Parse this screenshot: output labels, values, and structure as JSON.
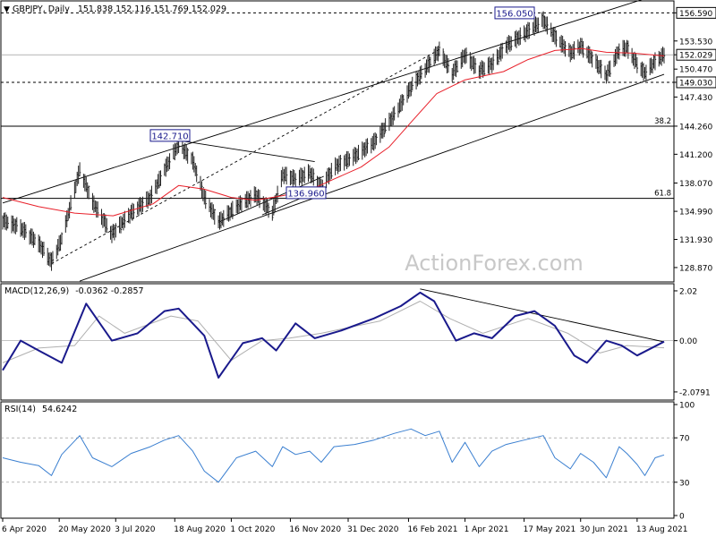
{
  "header": {
    "title": "GBPJPY, Daily",
    "ohlc": "151.838 152.116 151.769 152.029"
  },
  "watermark": "ActionForex.com",
  "colors": {
    "price": "#202020",
    "ma": "#e8202a",
    "macd": "#1a1a8c",
    "signal": "#b0b0b0",
    "rsi": "#3a7fd0",
    "level_box": "#1a1a8c"
  },
  "chart_data": [
    {
      "type": "line",
      "panel": "price",
      "ylim": [
        127.5,
        157.6
      ],
      "yticks": [
        "156.590",
        "153.530",
        "152.029",
        "150.470",
        "149.030",
        "147.430",
        "144.260",
        "141.200",
        "138.070",
        "134.990",
        "131.930",
        "128.870"
      ],
      "ytick_values": [
        156.59,
        153.53,
        152.029,
        150.47,
        149.03,
        147.43,
        144.26,
        141.2,
        138.07,
        134.99,
        131.93,
        128.87
      ],
      "highlighted_levels": [
        "156.590",
        "152.029",
        "149.030"
      ],
      "annotations": [
        {
          "label": "156.050",
          "value": 156.05,
          "date": "2021-06-01"
        },
        {
          "label": "142.710",
          "value": 142.71,
          "date": "2020-08-21"
        },
        {
          "label": "136.960",
          "value": 136.96,
          "date": "2020-12-01"
        }
      ],
      "fib_levels": [
        {
          "label": "38.2",
          "value": 144.26
        },
        {
          "label": "61.8",
          "value": 136.4
        }
      ],
      "series": [
        {
          "kind": "price",
          "points": [
            [
              "2020-04-06",
              134.0
            ],
            [
              "2020-04-20",
              133.2
            ],
            [
              "2020-05-04",
              131.5
            ],
            [
              "2020-05-14",
              129.5
            ],
            [
              "2020-05-22",
              132.0
            ],
            [
              "2020-06-05",
              139.5
            ],
            [
              "2020-06-15",
              136.0
            ],
            [
              "2020-06-30",
              132.5
            ],
            [
              "2020-07-15",
              134.8
            ],
            [
              "2020-07-30",
              136.5
            ],
            [
              "2020-08-10",
              139.5
            ],
            [
              "2020-08-21",
              142.3
            ],
            [
              "2020-09-01",
              140.5
            ],
            [
              "2020-09-10",
              136.5
            ],
            [
              "2020-09-21",
              133.8
            ],
            [
              "2020-10-05",
              135.5
            ],
            [
              "2020-10-20",
              136.8
            ],
            [
              "2020-11-02",
              134.8
            ],
            [
              "2020-11-10",
              139.0
            ],
            [
              "2020-11-20",
              138.5
            ],
            [
              "2020-12-01",
              139.2
            ],
            [
              "2020-12-10",
              137.6
            ],
            [
              "2020-12-20",
              139.8
            ],
            [
              "2021-01-05",
              141.0
            ],
            [
              "2021-01-20",
              142.5
            ],
            [
              "2021-02-05",
              145.5
            ],
            [
              "2021-02-18",
              148.5
            ],
            [
              "2021-03-01",
              150.5
            ],
            [
              "2021-03-12",
              152.5
            ],
            [
              "2021-03-22",
              150.0
            ],
            [
              "2021-04-01",
              152.0
            ],
            [
              "2021-04-12",
              150.3
            ],
            [
              "2021-04-22",
              151.0
            ],
            [
              "2021-05-03",
              153.0
            ],
            [
              "2021-05-17",
              154.3
            ],
            [
              "2021-06-01",
              155.8
            ],
            [
              "2021-06-10",
              154.0
            ],
            [
              "2021-06-22",
              152.2
            ],
            [
              "2021-06-30",
              153.0
            ],
            [
              "2021-07-10",
              151.5
            ],
            [
              "2021-07-20",
              149.8
            ],
            [
              "2021-07-30",
              152.5
            ],
            [
              "2021-08-05",
              152.8
            ],
            [
              "2021-08-13",
              151.0
            ],
            [
              "2021-08-19",
              150.0
            ],
            [
              "2021-08-27",
              151.3
            ],
            [
              "2021-09-03",
              152.03
            ]
          ]
        },
        {
          "kind": "moving-average",
          "points": [
            [
              "2020-04-06",
              136.5
            ],
            [
              "2020-05-04",
              135.5
            ],
            [
              "2020-06-01",
              134.8
            ],
            [
              "2020-07-01",
              134.5
            ],
            [
              "2020-08-01",
              135.8
            ],
            [
              "2020-08-21",
              137.8
            ],
            [
              "2020-09-10",
              137.4
            ],
            [
              "2020-10-01",
              136.5
            ],
            [
              "2020-10-20",
              136.2
            ],
            [
              "2020-11-10",
              136.7
            ],
            [
              "2020-12-01",
              137.3
            ],
            [
              "2020-12-20",
              138.5
            ],
            [
              "2021-01-10",
              139.8
            ],
            [
              "2021-02-01",
              142.0
            ],
            [
              "2021-02-20",
              145.0
            ],
            [
              "2021-03-10",
              147.8
            ],
            [
              "2021-04-01",
              149.3
            ],
            [
              "2021-05-01",
              150.2
            ],
            [
              "2021-05-20",
              151.5
            ],
            [
              "2021-06-10",
              152.5
            ],
            [
              "2021-07-01",
              152.7
            ],
            [
              "2021-07-20",
              152.3
            ],
            [
              "2021-08-10",
              152.2
            ],
            [
              "2021-09-03",
              151.9
            ]
          ]
        }
      ]
    },
    {
      "type": "line",
      "panel": "macd",
      "indicator": "MACD(12,26,9)",
      "readout": "-0.0362 -0.2857",
      "ylim": [
        -2.3,
        2.2
      ],
      "yticks": [
        "2.02",
        "0.00",
        "-2.0791"
      ],
      "ytick_values": [
        2.02,
        0.0,
        -2.0791
      ],
      "series": [
        {
          "kind": "macd",
          "points": [
            [
              "2020-04-06",
              -1.2
            ],
            [
              "2020-04-20",
              0.0
            ],
            [
              "2020-05-04",
              -0.4
            ],
            [
              "2020-05-22",
              -0.9
            ],
            [
              "2020-06-10",
              1.5
            ],
            [
              "2020-06-30",
              0.0
            ],
            [
              "2020-07-20",
              0.3
            ],
            [
              "2020-08-10",
              1.2
            ],
            [
              "2020-08-21",
              1.3
            ],
            [
              "2020-09-10",
              0.2
            ],
            [
              "2020-09-21",
              -1.5
            ],
            [
              "2020-10-10",
              -0.1
            ],
            [
              "2020-10-25",
              0.1
            ],
            [
              "2020-11-05",
              -0.4
            ],
            [
              "2020-11-20",
              0.7
            ],
            [
              "2020-12-05",
              0.1
            ],
            [
              "2020-12-25",
              0.4
            ],
            [
              "2021-01-20",
              0.9
            ],
            [
              "2021-02-10",
              1.4
            ],
            [
              "2021-02-25",
              1.95
            ],
            [
              "2021-03-08",
              1.6
            ],
            [
              "2021-03-25",
              0.0
            ],
            [
              "2021-04-08",
              0.3
            ],
            [
              "2021-04-22",
              0.1
            ],
            [
              "2021-05-10",
              1.0
            ],
            [
              "2021-05-25",
              1.2
            ],
            [
              "2021-06-10",
              0.6
            ],
            [
              "2021-06-25",
              -0.6
            ],
            [
              "2021-07-05",
              -0.9
            ],
            [
              "2021-07-20",
              0.0
            ],
            [
              "2021-08-01",
              -0.2
            ],
            [
              "2021-08-13",
              -0.6
            ],
            [
              "2021-09-03",
              -0.04
            ]
          ]
        },
        {
          "kind": "signal",
          "points": [
            [
              "2020-04-06",
              -0.9
            ],
            [
              "2020-05-04",
              -0.3
            ],
            [
              "2020-06-01",
              -0.2
            ],
            [
              "2020-06-20",
              1.0
            ],
            [
              "2020-07-10",
              0.3
            ],
            [
              "2020-08-15",
              1.0
            ],
            [
              "2020-09-05",
              0.8
            ],
            [
              "2020-10-01",
              -0.8
            ],
            [
              "2020-10-25",
              0.0
            ],
            [
              "2020-11-15",
              0.1
            ],
            [
              "2020-12-10",
              0.3
            ],
            [
              "2021-01-25",
              0.8
            ],
            [
              "2021-02-25",
              1.6
            ],
            [
              "2021-03-20",
              0.9
            ],
            [
              "2021-04-15",
              0.3
            ],
            [
              "2021-05-20",
              0.9
            ],
            [
              "2021-06-20",
              0.3
            ],
            [
              "2021-07-15",
              -0.5
            ],
            [
              "2021-08-05",
              -0.2
            ],
            [
              "2021-09-03",
              -0.29
            ]
          ]
        }
      ]
    },
    {
      "type": "line",
      "panel": "rsi",
      "indicator": "RSI(14)",
      "readout": "54.6242",
      "ylim": [
        0,
        100
      ],
      "yticks": [
        "100",
        "70",
        "30",
        "0"
      ],
      "ytick_values": [
        100,
        70,
        30,
        0
      ],
      "series": [
        {
          "kind": "rsi",
          "points": [
            [
              "2020-04-06",
              52
            ],
            [
              "2020-04-20",
              48
            ],
            [
              "2020-05-04",
              45
            ],
            [
              "2020-05-14",
              36
            ],
            [
              "2020-05-22",
              55
            ],
            [
              "2020-06-05",
              72
            ],
            [
              "2020-06-15",
              52
            ],
            [
              "2020-06-30",
              44
            ],
            [
              "2020-07-15",
              56
            ],
            [
              "2020-07-30",
              62
            ],
            [
              "2020-08-10",
              68
            ],
            [
              "2020-08-21",
              72
            ],
            [
              "2020-09-01",
              58
            ],
            [
              "2020-09-10",
              40
            ],
            [
              "2020-09-21",
              30
            ],
            [
              "2020-10-05",
              52
            ],
            [
              "2020-10-20",
              58
            ],
            [
              "2020-11-02",
              44
            ],
            [
              "2020-11-10",
              62
            ],
            [
              "2020-11-20",
              55
            ],
            [
              "2020-12-01",
              58
            ],
            [
              "2020-12-10",
              48
            ],
            [
              "2020-12-20",
              62
            ],
            [
              "2021-01-05",
              64
            ],
            [
              "2021-01-20",
              68
            ],
            [
              "2021-02-05",
              74
            ],
            [
              "2021-02-18",
              78
            ],
            [
              "2021-03-01",
              72
            ],
            [
              "2021-03-12",
              76
            ],
            [
              "2021-03-22",
              48
            ],
            [
              "2021-04-01",
              66
            ],
            [
              "2021-04-12",
              44
            ],
            [
              "2021-04-22",
              58
            ],
            [
              "2021-05-03",
              64
            ],
            [
              "2021-05-17",
              68
            ],
            [
              "2021-06-01",
              72
            ],
            [
              "2021-06-10",
              52
            ],
            [
              "2021-06-22",
              42
            ],
            [
              "2021-06-30",
              56
            ],
            [
              "2021-07-10",
              48
            ],
            [
              "2021-07-20",
              34
            ],
            [
              "2021-07-30",
              62
            ],
            [
              "2021-08-05",
              56
            ],
            [
              "2021-08-13",
              46
            ],
            [
              "2021-08-19",
              36
            ],
            [
              "2021-08-27",
              52
            ],
            [
              "2021-09-03",
              54.6
            ]
          ]
        }
      ]
    }
  ],
  "xaxis": {
    "ticks": [
      {
        "label": "6 Apr 2020",
        "date": "2020-04-06"
      },
      {
        "label": "20 May 2020",
        "date": "2020-05-20"
      },
      {
        "label": "3 Jul 2020",
        "date": "2020-07-03"
      },
      {
        "label": "18 Aug 2020",
        "date": "2020-08-18"
      },
      {
        "label": "1 Oct 2020",
        "date": "2020-10-01"
      },
      {
        "label": "16 Nov 2020",
        "date": "2020-11-16"
      },
      {
        "label": "31 Dec 2020",
        "date": "2020-12-31"
      },
      {
        "label": "16 Feb 2021",
        "date": "2021-02-16"
      },
      {
        "label": "1 Apr 2021",
        "date": "2021-04-01"
      },
      {
        "label": "17 May 2021",
        "date": "2021-05-17"
      },
      {
        "label": "30 Jun 2021",
        "date": "2021-06-30"
      },
      {
        "label": "13 Aug 2021",
        "date": "2021-08-13"
      }
    ]
  }
}
